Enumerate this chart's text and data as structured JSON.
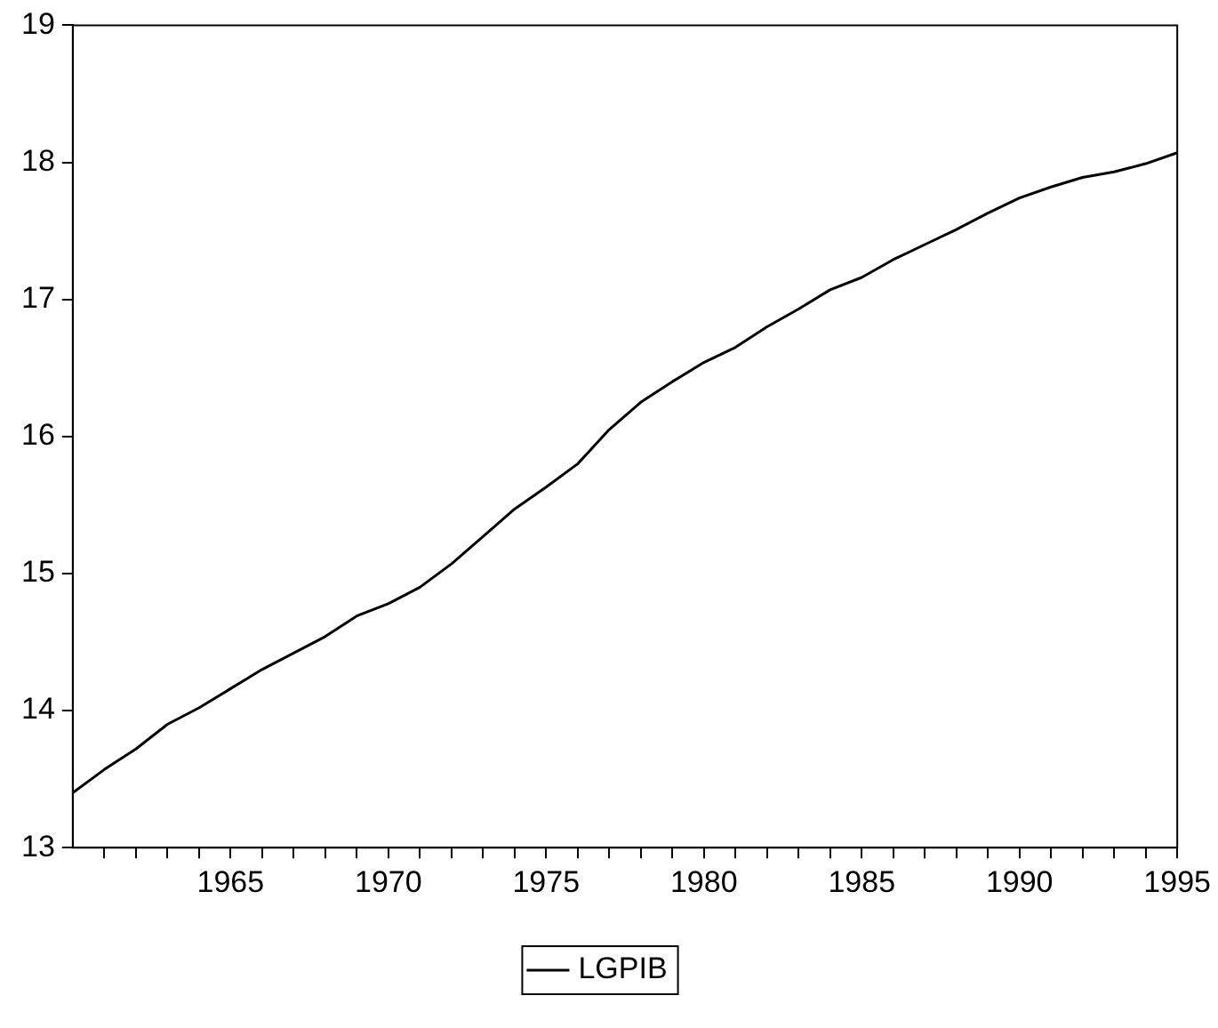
{
  "chart_data": {
    "type": "line",
    "x": [
      1960,
      1961,
      1962,
      1963,
      1964,
      1965,
      1966,
      1967,
      1968,
      1969,
      1970,
      1971,
      1972,
      1973,
      1974,
      1975,
      1976,
      1977,
      1978,
      1979,
      1980,
      1981,
      1982,
      1983,
      1984,
      1985,
      1986,
      1987,
      1988,
      1989,
      1990,
      1991,
      1992,
      1993,
      1994,
      1995
    ],
    "series": [
      {
        "name": "LGPIB",
        "color": "#000000",
        "values": [
          13.4,
          13.57,
          13.72,
          13.9,
          14.02,
          14.16,
          14.3,
          14.42,
          14.54,
          14.69,
          14.78,
          14.9,
          15.07,
          15.27,
          15.47,
          15.63,
          15.8,
          16.05,
          16.25,
          16.4,
          16.54,
          16.65,
          16.8,
          16.93,
          17.07,
          17.16,
          17.29,
          17.4,
          17.51,
          17.63,
          17.74,
          17.82,
          17.89,
          17.93,
          17.99,
          18.07
        ]
      }
    ],
    "xlim": [
      1960,
      1995
    ],
    "xticks": [
      {
        "value": 1961,
        "label": null
      },
      {
        "value": 1962,
        "label": null
      },
      {
        "value": 1963,
        "label": null
      },
      {
        "value": 1964,
        "label": null
      },
      1965,
      {
        "value": 1966,
        "label": null
      },
      {
        "value": 1967,
        "label": null
      },
      {
        "value": 1968,
        "label": null
      },
      {
        "value": 1969,
        "label": null
      },
      1970,
      {
        "value": 1971,
        "label": null
      },
      {
        "value": 1972,
        "label": null
      },
      {
        "value": 1973,
        "label": null
      },
      {
        "value": 1974,
        "label": null
      },
      1975,
      {
        "value": 1976,
        "label": null
      },
      {
        "value": 1977,
        "label": null
      },
      {
        "value": 1978,
        "label": null
      },
      {
        "value": 1979,
        "label": null
      },
      1980,
      {
        "value": 1981,
        "label": null
      },
      {
        "value": 1982,
        "label": null
      },
      {
        "value": 1983,
        "label": null
      },
      {
        "value": 1984,
        "label": null
      },
      1985,
      {
        "value": 1986,
        "label": null
      },
      {
        "value": 1987,
        "label": null
      },
      {
        "value": 1988,
        "label": null
      },
      {
        "value": 1989,
        "label": null
      },
      1990,
      {
        "value": 1991,
        "label": null
      },
      {
        "value": 1992,
        "label": null
      },
      {
        "value": 1993,
        "label": null
      },
      {
        "value": 1994,
        "label": null
      },
      1995
    ],
    "ylim": [
      13,
      19
    ],
    "yticks": [
      13,
      14,
      15,
      16,
      17,
      18,
      19
    ],
    "grid": false,
    "legend": "bottom",
    "marker": "none",
    "line_style": "solid"
  }
}
